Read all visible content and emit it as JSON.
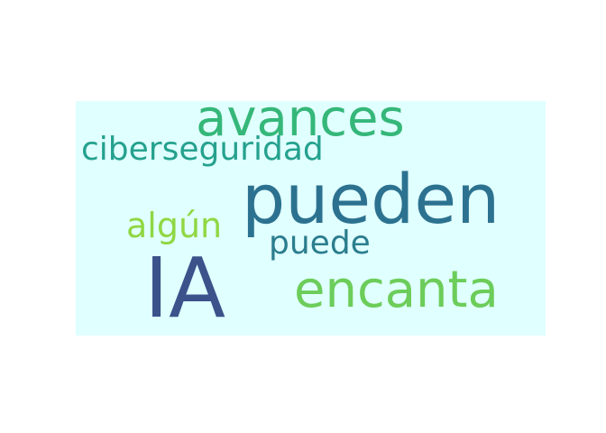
{
  "background_color": "#e0ffff",
  "words": [
    {
      "id": "avances",
      "text": "avances",
      "color": "#35b779"
    },
    {
      "id": "ciberseguridad",
      "text": "ciberseguridad",
      "color": "#25a18e"
    },
    {
      "id": "pueden",
      "text": "pueden",
      "color": "#2c7290"
    },
    {
      "id": "algun",
      "text": "algún",
      "color": "#90d743"
    },
    {
      "id": "puede",
      "text": "puede",
      "color": "#2b7d8e"
    },
    {
      "id": "ia",
      "text": "IA",
      "color": "#3b528b"
    },
    {
      "id": "encanta",
      "text": "encanta",
      "color": "#6ccd5a"
    }
  ]
}
